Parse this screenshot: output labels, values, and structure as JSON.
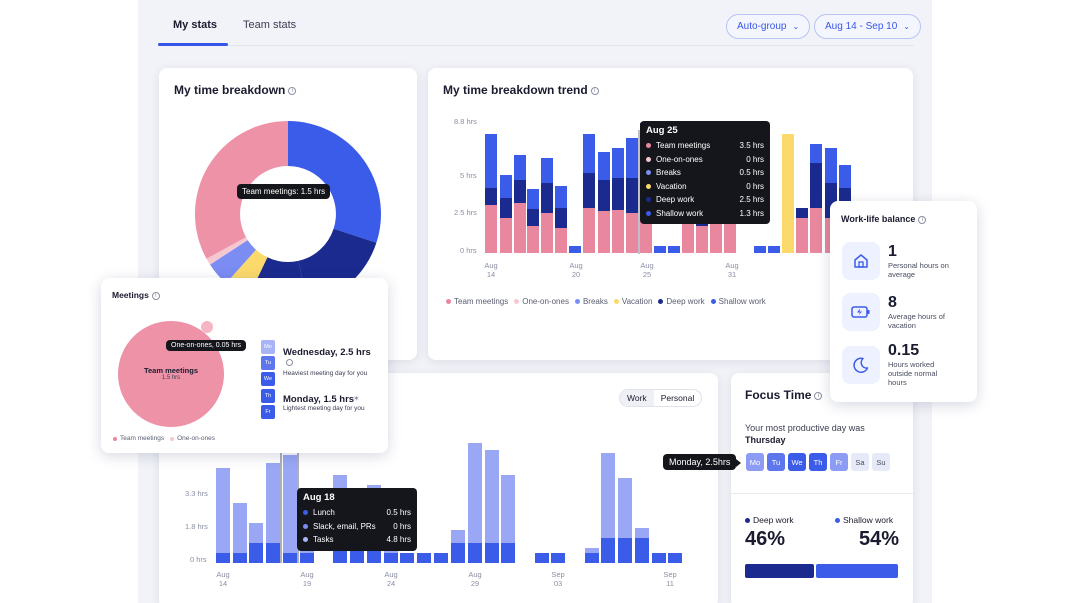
{
  "tabs": [
    "My stats",
    "Team stats"
  ],
  "filters": {
    "autogroup": "Auto-group",
    "daterange": "Aug 14 - Sep 10"
  },
  "breakdown": {
    "title": "My time breakdown",
    "tooltip": "Team meetings: 1.5 hrs",
    "tooltip_label": "Team meetings",
    "tooltip_value": "1.5 hrs"
  },
  "trend": {
    "title": "My time breakdown trend",
    "y_ticks": [
      "8.8 hrs",
      "5 hrs",
      "2.5 hrs",
      "0 hrs"
    ],
    "x_ticks": [
      [
        "Aug",
        "14"
      ],
      [
        "Aug",
        "20"
      ],
      [
        "Aug",
        "25"
      ],
      [
        "Aug",
        "31"
      ]
    ],
    "legend": [
      "Team meetings",
      "One-on-ones",
      "Breaks",
      "Vacation",
      "Deep work",
      "Shallow work"
    ],
    "tooltip": {
      "date": "Aug 25",
      "rows": [
        {
          "label": "Team meetings",
          "value": "3.5 hrs",
          "color": "#e8879d"
        },
        {
          "label": "One-on-ones",
          "value": "0 hrs",
          "color": "#f5c7d1"
        },
        {
          "label": "Breaks",
          "value": "0.5 hrs",
          "color": "#7b8cf3"
        },
        {
          "label": "Vacation",
          "value": "0 hrs",
          "color": "#fbd96b"
        },
        {
          "label": "Deep work",
          "value": "2.5 hrs",
          "color": "#1b2a8e"
        },
        {
          "label": "Shallow work",
          "value": "1.3 hrs",
          "color": "#3a5ce8"
        }
      ]
    }
  },
  "worklife": {
    "title": "Work-life balance",
    "items": [
      {
        "num": "1",
        "text": "Personal hours on average",
        "icon": "home-icon"
      },
      {
        "num": "8",
        "text": "Average hours of vacation",
        "icon": "battery-charging-icon"
      },
      {
        "num": "0.15",
        "text": "Hours worked outside normal hours",
        "icon": "moon-icon"
      }
    ]
  },
  "meetings": {
    "title": "Meetings",
    "bubble_label": "Team meetings",
    "bubble_value": "1.5 hrs",
    "tooltip": "One-on-ones, 0.05 hrs",
    "days": [
      "Mo",
      "Tu",
      "We",
      "Th",
      "Fr"
    ],
    "heavy_title": "Wednesday, 2.5 hrs",
    "heavy_sub": "Heaviest meeting day for you",
    "light_title": "Monday, 1.5 hrs",
    "light_sub": "Lightest meeting day for you",
    "legend": [
      "Team meetings",
      "One-on-ones"
    ]
  },
  "work": {
    "toggle": [
      "Work",
      "Personal"
    ],
    "y_ticks": [
      "3.3 hrs",
      "1.8 hrs",
      "0 hrs"
    ],
    "x_ticks": [
      [
        "Aug",
        "14"
      ],
      [
        "Aug",
        "19"
      ],
      [
        "Aug",
        "24"
      ],
      [
        "Aug",
        "29"
      ],
      [
        "Sep",
        "03"
      ],
      [
        "Sep",
        "11"
      ]
    ],
    "tooltip": {
      "date": "Aug 18",
      "rows": [
        {
          "label": "Lunch",
          "value": "0.5 hrs",
          "color": "#3a5ce8"
        },
        {
          "label": "Slack, email, PRs",
          "value": "0 hrs",
          "color": "#7b8cf3"
        },
        {
          "label": "Tasks",
          "value": "4.8 hrs",
          "color": "#a9b4f6"
        }
      ]
    }
  },
  "focus": {
    "title": "Focus Time",
    "productive": "Your most productive day was",
    "productive_day": "Thursday",
    "tooltip": "Monday, 2.5hrs",
    "days": [
      "Mo",
      "Tu",
      "We",
      "Th",
      "Fr",
      "Sa",
      "Su"
    ],
    "deep_label": "Deep work",
    "deep_pct": "46%",
    "shallow_label": "Shallow work",
    "shallow_pct": "54%"
  },
  "colors": {
    "team_meetings": "#e8879d",
    "one_on_ones": "#f5c7d1",
    "breaks": "#7b8cf3",
    "vacation": "#fbd96b",
    "deep_work": "#1b2a8e",
    "shallow_work": "#3a5ce8",
    "accent": "#3755e6"
  }
}
